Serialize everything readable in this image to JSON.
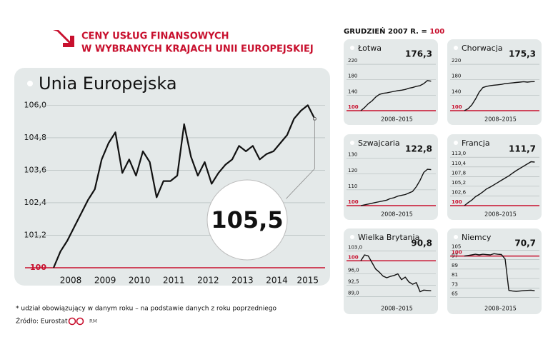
{
  "header": {
    "title_line1": "CENY USŁUG FINANSOWYCH",
    "title_line2": "W WYBRANYCH KRAJACH UNII EUROPEJSKIEJ",
    "base_text": "GRUDZIEŃ 2007 R. = ",
    "base_value": "100"
  },
  "footer": {
    "note": "* udział obowiązujący w danym roku – na podstawie danych z roku poprzedniego",
    "source": "Źródło: Eurostat",
    "author": "RM"
  },
  "chart_data": [
    {
      "type": "line",
      "title": "Unia Europejska",
      "color": "#111111",
      "grid": true,
      "x": [
        2008.0,
        2008.2,
        2008.4,
        2008.6,
        2008.8,
        2009.0,
        2009.2,
        2009.4,
        2009.6,
        2009.8,
        2010.0,
        2010.2,
        2010.4,
        2010.6,
        2010.8,
        2011.0,
        2011.2,
        2011.4,
        2011.6,
        2011.8,
        2012.0,
        2012.2,
        2012.4,
        2012.6,
        2012.8,
        2013.0,
        2013.2,
        2013.4,
        2013.6,
        2013.8,
        2014.0,
        2014.2,
        2014.4,
        2014.6,
        2014.8,
        2015.0,
        2015.2,
        2015.4,
        2015.6
      ],
      "values": [
        100.0,
        100.6,
        101.0,
        101.5,
        102.0,
        102.5,
        102.9,
        104.0,
        104.6,
        105.0,
        103.5,
        104.0,
        103.4,
        104.3,
        103.9,
        102.6,
        103.2,
        103.2,
        103.4,
        105.3,
        104.1,
        103.4,
        103.9,
        103.1,
        103.5,
        103.8,
        104.0,
        104.5,
        104.3,
        104.5,
        104.0,
        104.2,
        104.3,
        104.6,
        104.9,
        105.5,
        105.8,
        106.0,
        105.5
      ],
      "value_labels": [
        null,
        null,
        null,
        null,
        null,
        null,
        null,
        null,
        null,
        null,
        null,
        null,
        null,
        null,
        null,
        null,
        null,
        null,
        null,
        null,
        null,
        null,
        null,
        null,
        null,
        null,
        null,
        null,
        null,
        null,
        null,
        null,
        null,
        null,
        null,
        null,
        null,
        null,
        "105,5"
      ],
      "xlim": [
        2008,
        2015.8
      ],
      "xticks": [
        {
          "value": 2008.5,
          "label": "2008"
        },
        {
          "value": 2009.5,
          "label": "2009"
        },
        {
          "value": 2010.5,
          "label": "2010"
        },
        {
          "value": 2011.5,
          "label": "2011"
        },
        {
          "value": 2012.5,
          "label": "2012"
        },
        {
          "value": 2013.5,
          "label": "2013"
        },
        {
          "value": 2014.5,
          "label": "2014"
        },
        {
          "value": 2015.4,
          "label": "2015"
        }
      ],
      "ylim": [
        100,
        106.3
      ],
      "yticks": [
        100,
        {
          "value": 101.2,
          "label": "101,2"
        },
        {
          "value": 102.4,
          "label": "102,4"
        },
        {
          "value": 103.6,
          "label": "103,6"
        },
        {
          "value": 104.8,
          "label": "104,8"
        },
        {
          "value": 106.0,
          "label": "106,0"
        }
      ]
    },
    {
      "type": "line",
      "title": "Łotwa",
      "xlabel": "2008–2015",
      "color": "#111111",
      "grid": true,
      "x": [
        2008.0,
        2008.4,
        2008.8,
        2009.2,
        2009.6,
        2010.0,
        2010.4,
        2010.8,
        2011.2,
        2011.6,
        2012.0,
        2012.4,
        2012.8,
        2013.2,
        2013.6,
        2014.0,
        2014.4,
        2014.8,
        2015.2,
        2015.6
      ],
      "values": [
        100,
        108,
        118,
        125,
        135,
        142,
        145,
        146,
        148,
        150,
        152,
        153,
        155,
        158,
        160,
        163,
        165,
        170,
        178,
        176.3
      ],
      "value_labels": [
        null,
        null,
        null,
        null,
        null,
        null,
        null,
        null,
        null,
        null,
        null,
        null,
        null,
        null,
        null,
        null,
        null,
        null,
        null,
        "176,3"
      ],
      "xlim": [
        2008,
        2015.8
      ],
      "ylim": [
        100,
        235
      ],
      "yticks": [
        100,
        140,
        180,
        220
      ]
    },
    {
      "type": "line",
      "title": "Chorwacja",
      "xlabel": "2008–2015",
      "color": "#111111",
      "grid": true,
      "x": [
        2008.0,
        2008.4,
        2008.8,
        2009.2,
        2009.6,
        2010.0,
        2010.4,
        2010.8,
        2011.2,
        2011.6,
        2012.0,
        2012.4,
        2012.8,
        2013.2,
        2013.6,
        2014.0,
        2014.4,
        2014.8,
        2015.2,
        2015.6
      ],
      "values": [
        100,
        105,
        115,
        130,
        148,
        160,
        163,
        165,
        166,
        167,
        168,
        170,
        171,
        172,
        173,
        174,
        175,
        174,
        175,
        175.3
      ],
      "value_labels": [
        null,
        null,
        null,
        null,
        null,
        null,
        null,
        null,
        null,
        null,
        null,
        null,
        null,
        null,
        null,
        null,
        null,
        null,
        null,
        "175,3"
      ],
      "xlim": [
        2008,
        2015.8
      ],
      "ylim": [
        100,
        235
      ],
      "yticks": [
        100,
        140,
        180,
        220
      ]
    },
    {
      "type": "line",
      "title": "Szwajcaria",
      "xlabel": "2008–2015",
      "color": "#111111",
      "grid": true,
      "x": [
        2008.0,
        2008.4,
        2008.8,
        2009.2,
        2009.6,
        2010.0,
        2010.4,
        2010.8,
        2011.2,
        2011.6,
        2012.0,
        2012.4,
        2012.8,
        2013.2,
        2013.6,
        2014.0,
        2014.4,
        2014.8,
        2015.2,
        2015.6
      ],
      "values": [
        100,
        100.5,
        101,
        101.5,
        102,
        102.5,
        103,
        103.5,
        104.5,
        105,
        106,
        106.5,
        107,
        108,
        109,
        112,
        116,
        121,
        123,
        122.8
      ],
      "value_labels": [
        null,
        null,
        null,
        null,
        null,
        null,
        null,
        null,
        null,
        null,
        null,
        null,
        null,
        null,
        null,
        null,
        null,
        null,
        null,
        "122,8"
      ],
      "xlim": [
        2008,
        2015.8
      ],
      "ylim": [
        100,
        133
      ],
      "yticks": [
        100,
        110,
        120,
        130
      ]
    },
    {
      "type": "line",
      "title": "Francja",
      "xlabel": "2008–2015",
      "color": "#111111",
      "grid": true,
      "x": [
        2008.0,
        2008.4,
        2008.8,
        2009.2,
        2009.6,
        2010.0,
        2010.4,
        2010.8,
        2011.2,
        2011.6,
        2012.0,
        2012.4,
        2012.8,
        2013.2,
        2013.6,
        2014.0,
        2014.4,
        2014.8,
        2015.2,
        2015.6
      ],
      "values": [
        100,
        100.8,
        101.5,
        102.4,
        103.0,
        103.7,
        104.5,
        105.0,
        105.6,
        106.2,
        106.8,
        107.4,
        108.0,
        108.7,
        109.4,
        110.0,
        110.6,
        111.2,
        111.8,
        111.7
      ],
      "value_labels": [
        null,
        null,
        null,
        null,
        null,
        null,
        null,
        null,
        null,
        null,
        null,
        null,
        null,
        null,
        null,
        null,
        null,
        null,
        null,
        "111,7"
      ],
      "xlim": [
        2008,
        2015.8
      ],
      "ylim": [
        100,
        114
      ],
      "yticks": [
        100,
        {
          "value": 102.6,
          "label": "102,6"
        },
        {
          "value": 105.2,
          "label": "105,2"
        },
        {
          "value": 107.8,
          "label": "107,8"
        },
        {
          "value": 110.4,
          "label": "110,4"
        },
        {
          "value": 113.0,
          "label": "113,0"
        }
      ]
    },
    {
      "type": "line",
      "title": "Wielka Brytania",
      "xlabel": "2008–2015",
      "color": "#111111",
      "grid": true,
      "x": [
        2008.0,
        2008.4,
        2008.8,
        2009.2,
        2009.6,
        2010.0,
        2010.4,
        2010.8,
        2011.2,
        2011.6,
        2012.0,
        2012.4,
        2012.8,
        2013.2,
        2013.6,
        2014.0,
        2014.4,
        2014.8,
        2015.2,
        2015.6
      ],
      "values": [
        100,
        101.8,
        101.5,
        99.5,
        97.5,
        96.5,
        95.3,
        94.8,
        95.2,
        95.5,
        96.0,
        94.2,
        95.0,
        93.5,
        92.8,
        93.3,
        90.5,
        91.0,
        90.9,
        90.8
      ],
      "value_labels": [
        null,
        null,
        null,
        null,
        null,
        null,
        null,
        null,
        null,
        null,
        null,
        null,
        null,
        null,
        null,
        null,
        null,
        null,
        null,
        "90,8"
      ],
      "xlim": [
        2008,
        2015.8
      ],
      "ylim": [
        88,
        104
      ],
      "yticks": [
        {
          "value": 89.0,
          "label": "89,0"
        },
        {
          "value": 92.5,
          "label": "92,5"
        },
        {
          "value": 96.0,
          "label": "96,0"
        },
        100,
        {
          "value": 103.0,
          "label": "103,0"
        }
      ]
    },
    {
      "type": "line",
      "title": "Niemcy",
      "xlabel": "2008–2015",
      "color": "#111111",
      "grid": true,
      "x": [
        2008.0,
        2008.4,
        2008.8,
        2009.2,
        2009.6,
        2010.0,
        2010.4,
        2010.8,
        2011.2,
        2011.6,
        2012.0,
        2012.4,
        2012.8,
        2013.2,
        2013.6,
        2014.0,
        2014.4,
        2014.8,
        2015.2,
        2015.6
      ],
      "values": [
        100,
        100.5,
        101,
        101.5,
        101,
        101.5,
        101.2,
        101,
        102,
        101.5,
        101.3,
        97.5,
        71,
        70.5,
        70.2,
        70.5,
        70.8,
        71,
        71.2,
        70.7
      ],
      "value_labels": [
        null,
        null,
        null,
        null,
        null,
        null,
        null,
        null,
        null,
        null,
        null,
        null,
        null,
        null,
        null,
        null,
        null,
        null,
        null,
        "70,7"
      ],
      "xlim": [
        2008,
        2015.8
      ],
      "ylim": [
        63,
        107
      ],
      "yticks": [
        65,
        73,
        81,
        89,
        97,
        100,
        105
      ]
    }
  ]
}
